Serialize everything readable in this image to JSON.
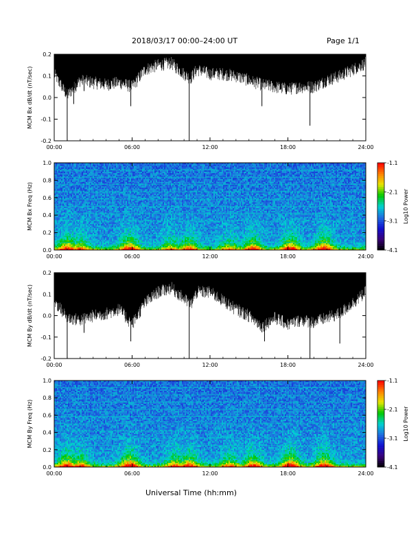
{
  "header": {
    "title": "2018/03/17   00:00–24:00 UT",
    "page": "Page 1/1",
    "x_axis_title": "Universal Time (hh:mm)"
  },
  "colors": {
    "trace": "#000000",
    "background": "#ffffff",
    "colormap": [
      "#000000",
      "#3a0078",
      "#1010d0",
      "#1f6fe0",
      "#00d2d2",
      "#00c800",
      "#e6e600",
      "#ff8000",
      "#ff0000"
    ]
  },
  "chart_data": [
    {
      "id": "bx-waveform",
      "type": "line",
      "ylabel": "MCM Bx dB/dt (nT/sec)",
      "ylim": [
        -0.2,
        0.2
      ],
      "yticks": [
        "-0.2",
        "-0.1",
        "0.0",
        "0.1",
        "0.2"
      ],
      "xlim": [
        0,
        24
      ],
      "xticks": [
        "00:00",
        "06:00",
        "12:00",
        "18:00",
        "24:00"
      ],
      "envelope_upper": 0.2,
      "series": [
        {
          "x_hours": [
            0,
            1,
            2,
            3,
            4,
            5,
            6,
            7,
            8,
            9,
            10,
            10.5,
            11,
            12,
            13,
            14,
            15,
            16,
            17,
            18,
            19,
            20,
            21,
            22,
            23,
            24
          ],
          "lower_envelope": [
            0.1,
            0.0,
            0.07,
            0.06,
            0.05,
            0.06,
            0.04,
            0.12,
            0.14,
            0.15,
            0.1,
            0.08,
            0.12,
            0.1,
            0.1,
            0.09,
            0.07,
            0.05,
            0.04,
            0.03,
            0.04,
            0.04,
            0.07,
            0.09,
            0.12,
            0.15
          ]
        }
      ],
      "spikes": [
        {
          "x": 1.0,
          "y": -0.2
        },
        {
          "x": 1.5,
          "y": -0.03
        },
        {
          "x": 2.3,
          "y": 0.03
        },
        {
          "x": 5.9,
          "y": -0.04
        },
        {
          "x": 10.4,
          "y": -0.2
        },
        {
          "x": 16.0,
          "y": -0.04
        },
        {
          "x": 19.7,
          "y": -0.13
        }
      ]
    },
    {
      "id": "bx-spectrogram",
      "type": "heatmap",
      "ylabel": "MCM Bx Freq (Hz)",
      "ylim": [
        0.0,
        1.0
      ],
      "yticks": [
        "0.0",
        "0.2",
        "0.4",
        "0.6",
        "0.8",
        "1.0"
      ],
      "xlim": [
        0,
        24
      ],
      "xticks": [
        "00:00",
        "06:00",
        "12:00",
        "18:00",
        "24:00"
      ],
      "colorbar": {
        "label": "Log10 Power",
        "min": -4.1,
        "max": -1.1,
        "ticks": [
          "-1.1",
          "-2.1",
          "-3.1",
          "-4.1"
        ]
      },
      "harmonic_lines_hz": [
        0.083,
        0.167,
        0.25,
        0.333,
        0.417,
        0.5,
        0.583,
        0.667,
        0.75,
        0.833,
        0.917
      ],
      "activity_bursts": [
        {
          "t": 1.0,
          "strength": 0.8
        },
        {
          "t": 2.0,
          "strength": 0.6
        },
        {
          "t": 5.8,
          "strength": 0.9
        },
        {
          "t": 9.0,
          "strength": 0.5
        },
        {
          "t": 10.4,
          "strength": 0.7
        },
        {
          "t": 13.5,
          "strength": 0.5
        },
        {
          "t": 15.3,
          "strength": 0.8
        },
        {
          "t": 18.2,
          "strength": 0.9
        },
        {
          "t": 20.8,
          "strength": 0.9
        }
      ]
    },
    {
      "id": "by-waveform",
      "type": "line",
      "ylabel": "MCM By dB/dt (nT/sec)",
      "ylim": [
        -0.2,
        0.2
      ],
      "yticks": [
        "-0.2",
        "-0.1",
        "0.0",
        "0.1",
        "0.2"
      ],
      "xlim": [
        0,
        24
      ],
      "xticks": [
        "00:00",
        "06:00",
        "12:00",
        "18:00",
        "24:00"
      ],
      "envelope_upper": 0.2,
      "series": [
        {
          "x_hours": [
            0,
            1,
            2,
            3,
            4,
            5,
            6,
            7,
            8,
            9,
            10,
            10.5,
            11,
            12,
            13,
            14,
            15,
            16,
            17,
            18,
            19,
            20,
            21,
            22,
            23,
            24
          ],
          "lower_envelope": [
            0.06,
            -0.02,
            -0.03,
            -0.01,
            0.0,
            0.02,
            -0.05,
            0.05,
            0.1,
            0.12,
            0.07,
            0.04,
            0.1,
            0.1,
            0.06,
            0.02,
            -0.01,
            -0.06,
            -0.02,
            -0.05,
            -0.03,
            -0.04,
            -0.02,
            0.0,
            0.05,
            0.1
          ]
        }
      ],
      "spikes": [
        {
          "x": 1.0,
          "y": -0.2
        },
        {
          "x": 2.3,
          "y": -0.08
        },
        {
          "x": 5.9,
          "y": -0.12
        },
        {
          "x": 10.4,
          "y": -0.2
        },
        {
          "x": 16.2,
          "y": -0.12
        },
        {
          "x": 19.7,
          "y": -0.2
        },
        {
          "x": 22.0,
          "y": -0.13
        }
      ]
    },
    {
      "id": "by-spectrogram",
      "type": "heatmap",
      "ylabel": "MCM By Freq (Hz)",
      "ylim": [
        0.0,
        1.0
      ],
      "yticks": [
        "0.0",
        "0.2",
        "0.4",
        "0.6",
        "0.8",
        "1.0"
      ],
      "xlim": [
        0,
        24
      ],
      "xticks": [
        "00:00",
        "06:00",
        "12:00",
        "18:00",
        "24:00"
      ],
      "colorbar": {
        "label": "Log10 Power",
        "min": -4.1,
        "max": -1.1,
        "ticks": [
          "-1.1",
          "-2.1",
          "-3.1",
          "-4.1"
        ]
      },
      "harmonic_lines_hz": [
        0.083,
        0.167,
        0.25,
        0.333,
        0.417,
        0.5,
        0.583,
        0.667,
        0.75,
        0.833,
        0.917
      ],
      "activity_bursts": [
        {
          "t": 1.0,
          "strength": 0.9
        },
        {
          "t": 2.0,
          "strength": 0.7
        },
        {
          "t": 5.8,
          "strength": 1.0
        },
        {
          "t": 9.3,
          "strength": 0.7
        },
        {
          "t": 10.4,
          "strength": 0.8
        },
        {
          "t": 13.5,
          "strength": 0.6
        },
        {
          "t": 15.3,
          "strength": 0.8
        },
        {
          "t": 18.2,
          "strength": 1.0
        },
        {
          "t": 20.8,
          "strength": 0.9
        }
      ]
    }
  ]
}
